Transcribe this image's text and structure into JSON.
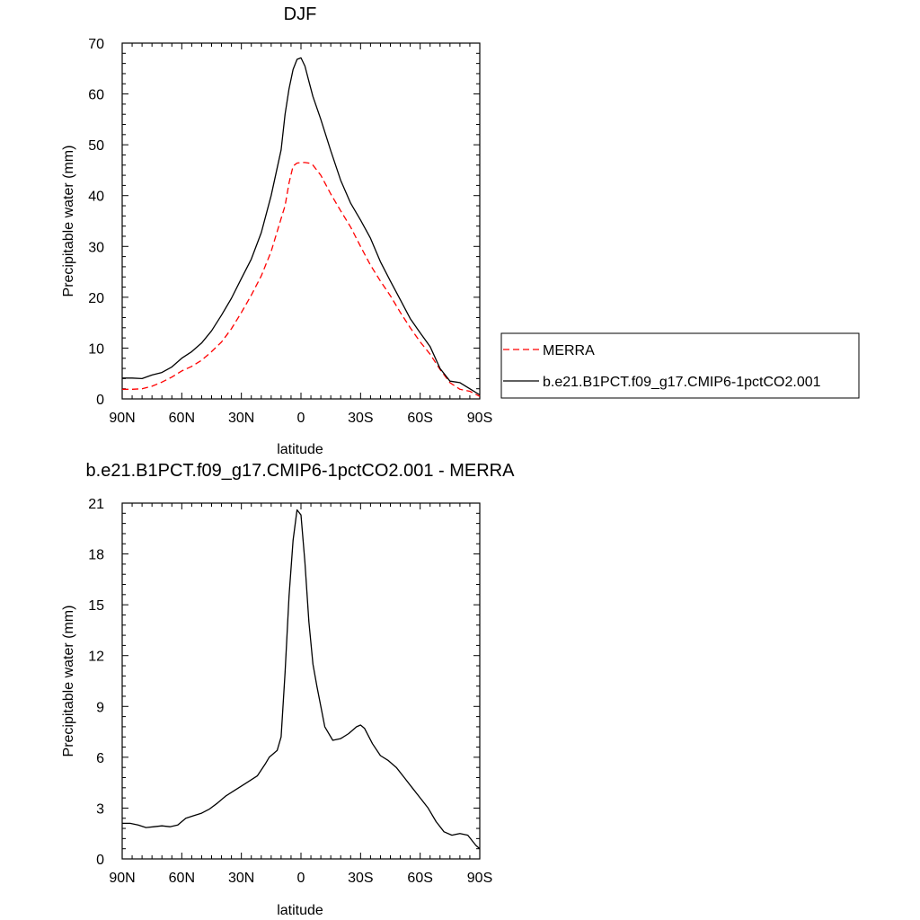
{
  "chart_data": [
    {
      "type": "line",
      "title": "DJF",
      "xlabel": "latitude",
      "ylabel": "Precipitable water (mm)",
      "xlim": [
        90,
        -90
      ],
      "ylim": [
        0,
        70
      ],
      "x_ticks": [
        {
          "value": 90,
          "label": "90N"
        },
        {
          "value": 60,
          "label": "60N"
        },
        {
          "value": 30,
          "label": "30N"
        },
        {
          "value": 0,
          "label": "0"
        },
        {
          "value": -30,
          "label": "30S"
        },
        {
          "value": -60,
          "label": "60S"
        },
        {
          "value": -90,
          "label": "90S"
        }
      ],
      "y_ticks": [
        {
          "value": 0,
          "label": "0"
        },
        {
          "value": 10,
          "label": "10"
        },
        {
          "value": 20,
          "label": "20"
        },
        {
          "value": 30,
          "label": "30"
        },
        {
          "value": 40,
          "label": "40"
        },
        {
          "value": 50,
          "label": "50"
        },
        {
          "value": 60,
          "label": "60"
        },
        {
          "value": 70,
          "label": "70"
        }
      ],
      "legend": "right",
      "series": [
        {
          "name": "MERRA",
          "color": "#ff0000",
          "dashed": true,
          "x": [
            90,
            85,
            80,
            75,
            70,
            65,
            60,
            55,
            50,
            45,
            40,
            35,
            30,
            25,
            20,
            15,
            10,
            8,
            6,
            4,
            2,
            0,
            -2,
            -4,
            -6,
            -10,
            -15,
            -20,
            -25,
            -30,
            -35,
            -40,
            -45,
            -50,
            -55,
            -60,
            -65,
            -70,
            -75,
            -80,
            -85,
            -90
          ],
          "y": [
            1.9,
            1.9,
            2.0,
            2.5,
            3.3,
            4.3,
            5.5,
            6.4,
            7.6,
            9.3,
            11.2,
            13.8,
            17.0,
            20.4,
            24.2,
            29.0,
            35.5,
            38.0,
            42.5,
            45.8,
            46.4,
            46.5,
            46.5,
            46.4,
            46.0,
            44.0,
            40.3,
            37.0,
            33.8,
            30.0,
            26.3,
            23.2,
            20.3,
            17.0,
            14.0,
            11.2,
            8.8,
            5.8,
            3.2,
            1.9,
            1.5,
            0.5
          ]
        },
        {
          "name": "b.e21.B1PCT.f09_g17.CMIP6-1pctCO2.001",
          "color": "#000000",
          "dashed": false,
          "x": [
            90,
            85,
            80,
            75,
            70,
            65,
            60,
            55,
            50,
            45,
            40,
            35,
            30,
            25,
            20,
            15,
            10,
            8,
            6,
            4,
            2,
            0,
            -2,
            -4,
            -6,
            -10,
            -15,
            -20,
            -25,
            -30,
            -35,
            -40,
            -45,
            -50,
            -55,
            -60,
            -65,
            -70,
            -75,
            -80,
            -85,
            -90
          ],
          "y": [
            4.1,
            4.1,
            4.0,
            4.7,
            5.2,
            6.3,
            8.0,
            9.3,
            11.0,
            13.4,
            16.5,
            19.8,
            23.7,
            27.5,
            32.7,
            40.0,
            49.0,
            56.0,
            61.0,
            64.8,
            66.8,
            67.1,
            65.5,
            62.5,
            59.5,
            55.0,
            48.8,
            43.0,
            38.5,
            35.2,
            31.6,
            27.0,
            23.2,
            19.5,
            15.8,
            13.0,
            10.3,
            6.0,
            3.5,
            3.2,
            2.0,
            0.8
          ]
        }
      ]
    },
    {
      "type": "line",
      "title": "b.e21.B1PCT.f09_g17.CMIP6-1pctCO2.001 - MERRA",
      "xlabel": "latitude",
      "ylabel": "Precipitable water (mm)",
      "xlim": [
        90,
        -90
      ],
      "ylim": [
        0,
        21
      ],
      "x_ticks": [
        {
          "value": 90,
          "label": "90N"
        },
        {
          "value": 60,
          "label": "60N"
        },
        {
          "value": 30,
          "label": "30N"
        },
        {
          "value": 0,
          "label": "0"
        },
        {
          "value": -30,
          "label": "30S"
        },
        {
          "value": -60,
          "label": "60S"
        },
        {
          "value": -90,
          "label": "90S"
        }
      ],
      "y_ticks": [
        {
          "value": 0,
          "label": "0"
        },
        {
          "value": 3,
          "label": "3"
        },
        {
          "value": 6,
          "label": "6"
        },
        {
          "value": 9,
          "label": "9"
        },
        {
          "value": 12,
          "label": "12"
        },
        {
          "value": 15,
          "label": "15"
        },
        {
          "value": 18,
          "label": "18"
        },
        {
          "value": 21,
          "label": "21"
        }
      ],
      "series": [
        {
          "color": "#000000",
          "dashed": false,
          "x": [
            90,
            86,
            82,
            78,
            74,
            70,
            66,
            62,
            58,
            54,
            50,
            46,
            42,
            38,
            34,
            30,
            26,
            22,
            18,
            16,
            14,
            12,
            10,
            8,
            6,
            4,
            2,
            0,
            -2,
            -4,
            -6,
            -8,
            -10,
            -12,
            -16,
            -20,
            -24,
            -28,
            -30,
            -32,
            -36,
            -40,
            -44,
            -48,
            -52,
            -56,
            -60,
            -64,
            -68,
            -72,
            -76,
            -80,
            -84,
            -88,
            -90
          ],
          "y": [
            2.1,
            2.1,
            2.0,
            1.85,
            1.9,
            1.95,
            1.9,
            2.0,
            2.4,
            2.55,
            2.7,
            2.95,
            3.3,
            3.7,
            4.0,
            4.3,
            4.6,
            4.9,
            5.6,
            6.0,
            6.2,
            6.4,
            7.2,
            11.0,
            15.5,
            18.8,
            20.6,
            20.3,
            17.5,
            14.0,
            11.5,
            10.2,
            9.0,
            7.8,
            7.0,
            7.1,
            7.4,
            7.8,
            7.9,
            7.7,
            6.8,
            6.1,
            5.8,
            5.4,
            4.8,
            4.2,
            3.6,
            3.0,
            2.2,
            1.6,
            1.4,
            1.5,
            1.4,
            0.8,
            0.6
          ]
        }
      ]
    }
  ]
}
